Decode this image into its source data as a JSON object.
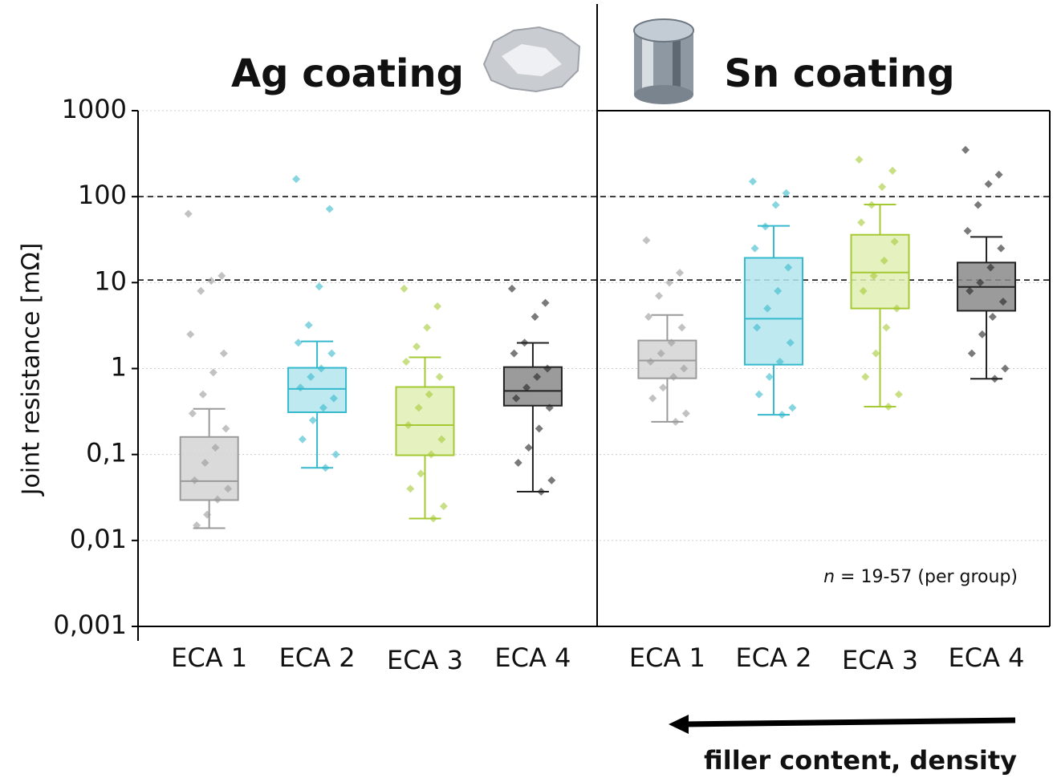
{
  "chart_data": {
    "type": "box",
    "ylabel": "Joint resistance [mΩ]",
    "log_scale": true,
    "ylim": [
      0.001,
      1000
    ],
    "yticks": [
      {
        "value": 0.001,
        "label": "0,001"
      },
      {
        "value": 0.01,
        "label": "0,01"
      },
      {
        "value": 0.1,
        "label": "0,1"
      },
      1,
      10,
      100,
      1000
    ],
    "grid": true,
    "reference_lines": [
      100,
      10.7
    ],
    "annotation_symbol": "n",
    "annotation": "= 19-57 (per group)",
    "arrow_label": "filler content, density",
    "panels": [
      {
        "title": "Ag coating",
        "boxes": [
          {
            "category": "ECA 1",
            "color": "#9a9a9a",
            "fill": "#d4d4d4",
            "whisker_low": 0.0139,
            "q1": 0.0295,
            "median": 0.049,
            "q3": 0.16,
            "whisker_high": 0.34,
            "points": [
              63,
              12,
              10.5,
              8,
              2.5,
              1.5,
              0.9,
              0.5,
              0.3,
              0.2,
              0.12,
              0.08,
              0.05,
              0.04,
              0.03,
              0.02,
              0.015
            ]
          },
          {
            "category": "ECA 2",
            "color": "#35b9cc",
            "fill": "#b3e5ed",
            "whisker_low": 0.07,
            "q1": 0.31,
            "median": 0.58,
            "q3": 1.02,
            "whisker_high": 2.07,
            "points": [
              160,
              72,
              9,
              3.2,
              2,
              1.5,
              1,
              0.8,
              0.6,
              0.45,
              0.35,
              0.25,
              0.15,
              0.1,
              0.07
            ]
          },
          {
            "category": "ECA 3",
            "color": "#a5c933",
            "fill": "#e2eeb5",
            "whisker_low": 0.018,
            "q1": 0.098,
            "median": 0.22,
            "q3": 0.61,
            "whisker_high": 1.35,
            "points": [
              8.5,
              5.3,
              3,
              1.8,
              1.2,
              0.8,
              0.5,
              0.35,
              0.22,
              0.15,
              0.1,
              0.06,
              0.04,
              0.025,
              0.018
            ]
          },
          {
            "category": "ECA 4",
            "color": "#222222",
            "fill": "#8a8a8a",
            "whisker_low": 0.037,
            "q1": 0.37,
            "median": 0.55,
            "q3": 1.04,
            "whisker_high": 1.99,
            "points": [
              8.5,
              5.8,
              4,
              2,
              1.5,
              1,
              0.8,
              0.6,
              0.45,
              0.35,
              0.2,
              0.12,
              0.08,
              0.05,
              0.037
            ]
          }
        ]
      },
      {
        "title": "Sn coating",
        "boxes": [
          {
            "category": "ECA 1",
            "color": "#9a9a9a",
            "fill": "#d4d4d4",
            "whisker_low": 0.24,
            "q1": 0.77,
            "median": 1.24,
            "q3": 2.12,
            "whisker_high": 4.2,
            "points": [
              31,
              13,
              10,
              7,
              4,
              3,
              2,
              1.5,
              1.2,
              1,
              0.8,
              0.6,
              0.45,
              0.3,
              0.24
            ]
          },
          {
            "category": "ECA 2",
            "color": "#35b9cc",
            "fill": "#b3e5ed",
            "whisker_low": 0.29,
            "q1": 1.11,
            "median": 3.8,
            "q3": 19.4,
            "whisker_high": 45.7,
            "points": [
              150,
              110,
              80,
              45,
              25,
              15,
              8,
              5,
              3,
              2,
              1.2,
              0.8,
              0.5,
              0.35,
              0.29
            ]
          },
          {
            "category": "ECA 3",
            "color": "#a5c933",
            "fill": "#e2eeb5",
            "whisker_low": 0.36,
            "q1": 5.0,
            "median": 13.1,
            "q3": 36,
            "whisker_high": 81,
            "points": [
              270,
              200,
              130,
              80,
              50,
              30,
              18,
              12,
              8,
              5,
              3,
              1.5,
              0.8,
              0.5,
              0.36
            ]
          },
          {
            "category": "ECA 4",
            "color": "#222222",
            "fill": "#8a8a8a",
            "whisker_low": 0.76,
            "q1": 4.7,
            "median": 8.9,
            "q3": 17.1,
            "whisker_high": 34,
            "points": [
              350,
              180,
              140,
              80,
              40,
              25,
              15,
              10,
              8,
              6,
              4,
              2.5,
              1.5,
              1,
              0.76
            ]
          }
        ]
      }
    ]
  }
}
